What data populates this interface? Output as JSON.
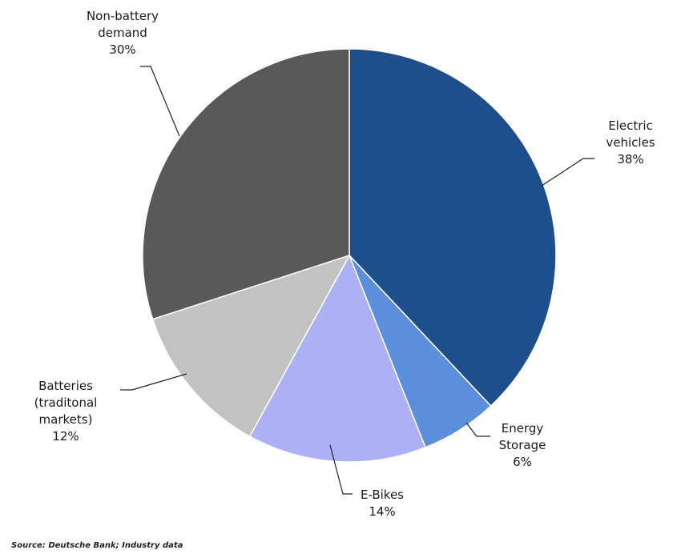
{
  "chart_data": {
    "type": "pie",
    "slices": [
      {
        "label_lines": [
          "Electric",
          "vehicles",
          "38%"
        ],
        "value": 38,
        "color": "#1f4e8c"
      },
      {
        "label_lines": [
          "Energy",
          "Storage",
          "6%"
        ],
        "value": 6,
        "color": "#5b8fdc"
      },
      {
        "label_lines": [
          "E-Bikes",
          "14%"
        ],
        "value": 14,
        "color": "#aeb0f6"
      },
      {
        "label_lines": [
          "Batteries",
          "(traditonal",
          "markets)",
          "12%"
        ],
        "value": 12,
        "color": "#c2c2c2"
      },
      {
        "label_lines": [
          "Non-battery",
          "demand",
          "30%"
        ],
        "value": 30,
        "color": "#595959"
      }
    ],
    "start": "12 o'clock",
    "direction": "clockwise",
    "legend": "none"
  },
  "source": "Source: Deutsche Bank; Industry data"
}
